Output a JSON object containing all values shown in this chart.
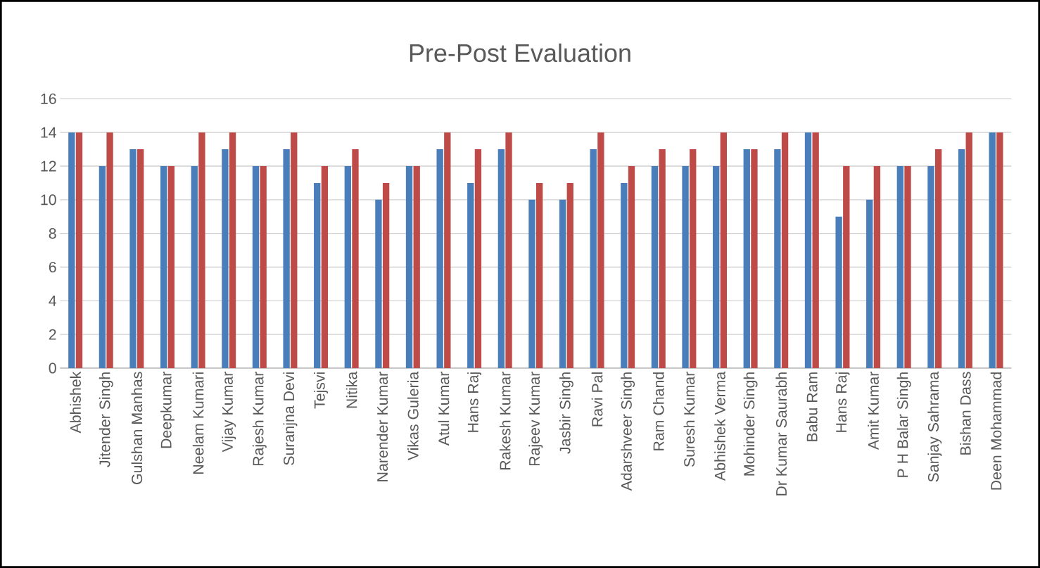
{
  "chart_data": {
    "type": "bar",
    "title": "Pre-Post Evaluation",
    "categories": [
      "Abhishek",
      "Jitender Singh",
      "Gulshan Manhas",
      "Deepkumar",
      "Neelam Kumari",
      "Vijay Kumar",
      "Rajesh Kumar",
      "Suranjna Devi",
      "Tejsvi",
      "Nitika",
      "Narender Kumar",
      "Vikas Guleria",
      "Atul Kumar",
      "Hans Raj",
      "Rakesh Kumar",
      "Rajeev Kumar",
      "Jasbir Singh",
      "Ravi Pal",
      "Adarshveer Singh",
      "Ram Chand",
      "Suresh Kumar",
      "Abhishek Verma",
      "Mohinder Singh",
      "Dr Kumar Saurabh",
      "Babu Ram",
      "Hans Raj",
      "Amit Kumar",
      "P H Balar Singh",
      "Sanjay Sahrama",
      "Bishan Dass",
      "Deen Mohammad"
    ],
    "series": [
      {
        "color": "#4a7ebb",
        "values": [
          14,
          12,
          13,
          12,
          12,
          13,
          12,
          13,
          11,
          12,
          10,
          12,
          13,
          11,
          13,
          10,
          10,
          13,
          11,
          12,
          12,
          12,
          13,
          13,
          14,
          9,
          10,
          12,
          12,
          13,
          14
        ]
      },
      {
        "color": "#be4b48",
        "values": [
          14,
          14,
          13,
          12,
          14,
          14,
          12,
          14,
          12,
          13,
          11,
          12,
          14,
          13,
          14,
          11,
          11,
          14,
          12,
          13,
          13,
          14,
          13,
          14,
          14,
          12,
          12,
          12,
          13,
          14,
          14
        ]
      }
    ],
    "ylim": [
      0,
      16
    ],
    "yticks": [
      0,
      2,
      4,
      6,
      8,
      10,
      12,
      14,
      16
    ],
    "grid": "y"
  }
}
